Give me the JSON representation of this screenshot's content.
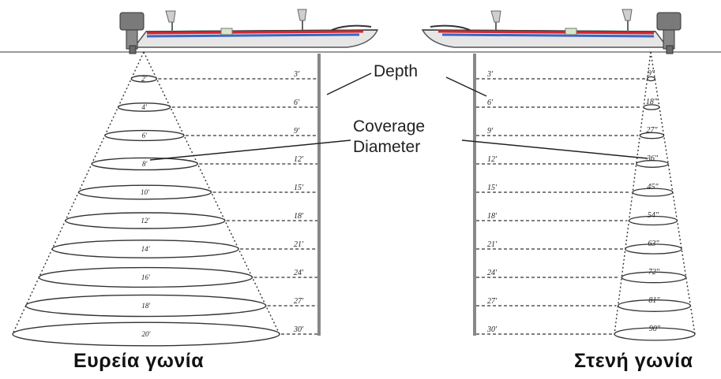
{
  "labels": {
    "depth": "Depth",
    "coverage_line1": "Coverage",
    "coverage_line2": "Diameter"
  },
  "captions": {
    "left": "Ευρεία γωνία",
    "right": "Στενή γωνία"
  },
  "wide_beam": {
    "depths": [
      "3'",
      "6'",
      "9'",
      "12'",
      "15'",
      "18'",
      "21'",
      "24'",
      "27'",
      "30'"
    ],
    "diameters": [
      "2'",
      "4'",
      "6'",
      "8'",
      "10'",
      "12'",
      "14'",
      "16'",
      "18'",
      "20'"
    ]
  },
  "narrow_beam": {
    "depths": [
      "3'",
      "6'",
      "9'",
      "12'",
      "15'",
      "18'",
      "21'",
      "24'",
      "27'",
      "30'"
    ],
    "diameters": [
      "9\"",
      "18\"",
      "27\"",
      "36\"",
      "45\"",
      "54\"",
      "63\"",
      "72\"",
      "81\"",
      "90\""
    ]
  },
  "colors": {
    "line": "#222222",
    "boat_red": "#d8262c",
    "boat_blue": "#3b66c4",
    "water": "#999999"
  }
}
